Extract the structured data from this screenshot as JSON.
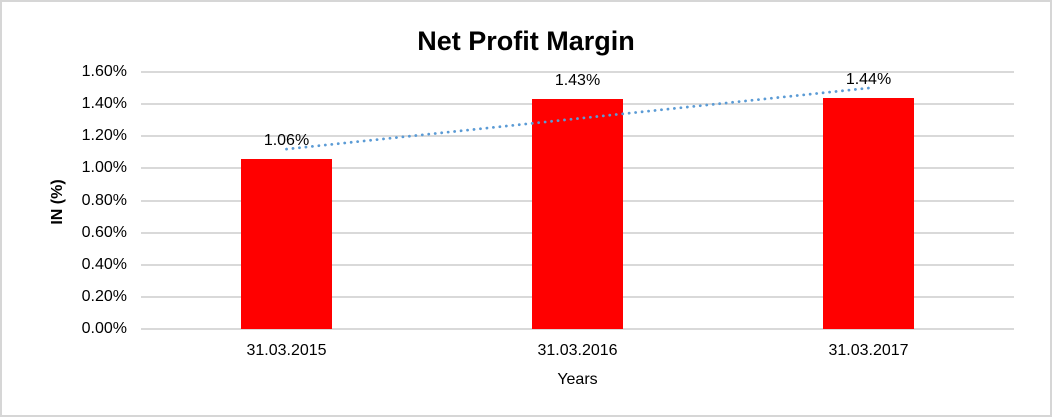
{
  "chart_data": {
    "type": "bar",
    "title": "Net Profit Margin",
    "xlabel": "Years",
    "ylabel": "IN (%)",
    "categories": [
      "31.03.2015",
      "31.03.2016",
      "31.03.2017"
    ],
    "values": [
      1.06,
      1.43,
      1.44
    ],
    "data_labels": [
      "1.06%",
      "1.43%",
      "1.44%"
    ],
    "unit": "%",
    "ylim": [
      0,
      1.6
    ],
    "ytick_step": 0.2,
    "ytick_labels": [
      "0.00%",
      "0.20%",
      "0.40%",
      "0.60%",
      "0.80%",
      "1.00%",
      "1.20%",
      "1.40%",
      "1.60%"
    ],
    "grid": "horizontal",
    "legend": "none",
    "bar_color": "#ff0000",
    "gridline_color": "#d9d9d9",
    "trendline": {
      "type": "linear",
      "style": "dotted",
      "color": "#5b9bd5",
      "y_start": 1.12,
      "y_end": 1.5
    }
  }
}
